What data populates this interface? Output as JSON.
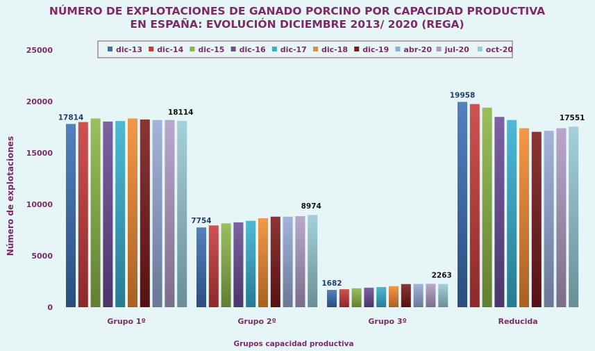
{
  "chart_data": {
    "type": "bar",
    "title_lines": [
      "NÚMERO DE EXPLOTACIONES DE GANADO PORCINO POR CAPACIDAD PRODUCTIVA",
      "EN ESPAÑA: EVOLUCIÓN DICIEMBRE 2013/ 2020 (REGA)"
    ],
    "xlabel": "Grupos capacidad  productiva",
    "ylabel": "Número de explotaciones",
    "ylim": [
      0,
      25000
    ],
    "yticks": [
      0,
      5000,
      10000,
      15000,
      20000,
      25000
    ],
    "legend_position": "top",
    "categories": [
      "Grupo 1º",
      "Grupo 2º",
      "Grupo 3º",
      "Reducida"
    ],
    "series": [
      {
        "name": "dic-13",
        "color": "#3b6fb6",
        "values": [
          17814,
          7754,
          1682,
          19958
        ]
      },
      {
        "name": "dic-14",
        "color": "#c93a3a",
        "values": [
          18000,
          7950,
          1750,
          19750
        ]
      },
      {
        "name": "dic-15",
        "color": "#8cb646",
        "values": [
          18350,
          8150,
          1840,
          19400
        ]
      },
      {
        "name": "dic-16",
        "color": "#6b4c97",
        "values": [
          18050,
          8250,
          1900,
          18500
        ]
      },
      {
        "name": "dic-17",
        "color": "#36b0d0",
        "values": [
          18100,
          8400,
          1960,
          18200
        ]
      },
      {
        "name": "dic-18",
        "color": "#f28a2f",
        "values": [
          18350,
          8650,
          2050,
          17400
        ]
      },
      {
        "name": "dic-19",
        "color": "#7a1a1a",
        "values": [
          18250,
          8800,
          2250,
          17050
        ]
      },
      {
        "name": "abr-20",
        "color": "#97aad6",
        "values": [
          18200,
          8800,
          2260,
          17150
        ]
      },
      {
        "name": "jul-20",
        "color": "#b09cc4",
        "values": [
          18200,
          8850,
          2280,
          17400
        ]
      },
      {
        "name": "oct-20",
        "color": "#98cbd6",
        "values": [
          18114,
          8974,
          2263,
          17551
        ]
      }
    ],
    "data_labels": {
      "first": [
        17814,
        7754,
        1682,
        19958
      ],
      "last": [
        18114,
        8974,
        2263,
        17551
      ]
    }
  }
}
